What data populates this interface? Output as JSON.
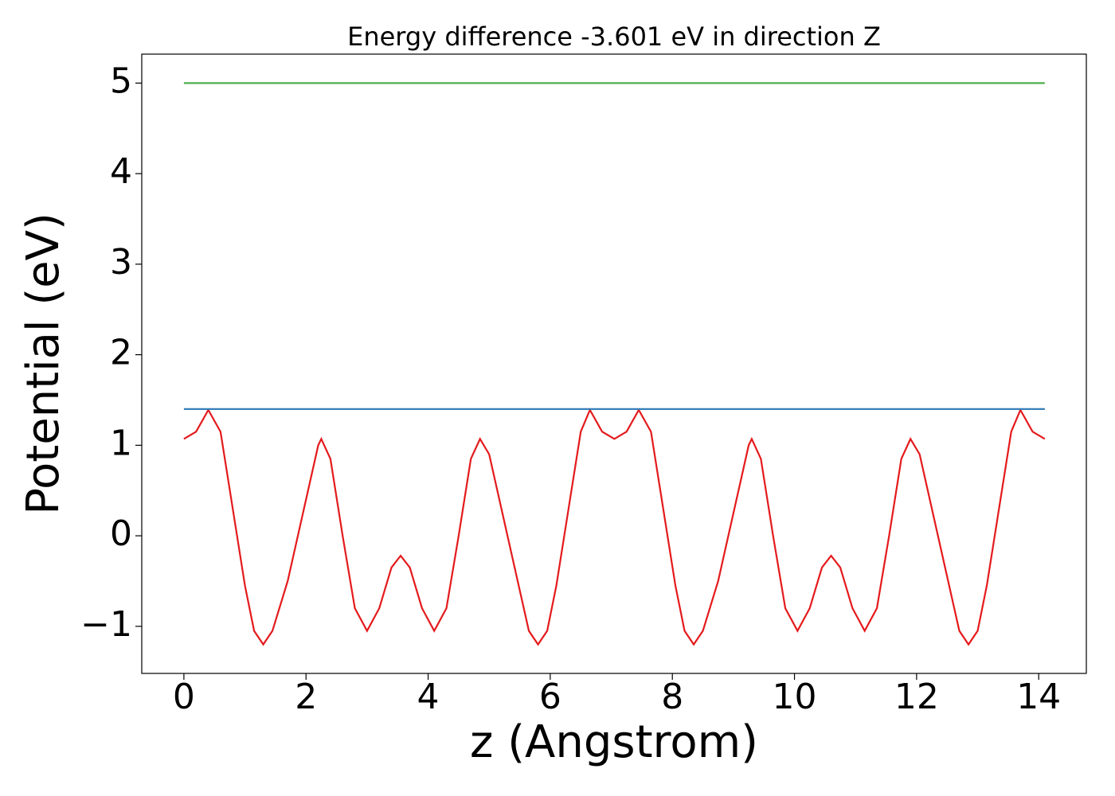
{
  "chart_data": {
    "type": "line",
    "title": "Energy difference -3.601 eV in direction Z",
    "x_label": "z (Angstrom)",
    "y_label": "Potential (eV)",
    "xlim": [
      -0.69,
      14.78
    ],
    "ylim": [
      -1.52,
      5.32
    ],
    "xticks": [
      0,
      2,
      4,
      6,
      8,
      10,
      12,
      14
    ],
    "yticks": [
      {
        "value": -1,
        "label": "−1"
      },
      0,
      1,
      2,
      3,
      4,
      5
    ],
    "series": [
      {
        "color": "#e41a1c",
        "x": [
          0,
          0.2,
          0.4,
          0.6,
          0.8,
          1.0,
          1.15,
          1.3,
          1.45,
          1.7,
          2.0,
          2.2,
          2.25,
          2.4,
          2.6,
          2.8,
          3.0,
          3.2,
          3.4,
          3.55,
          3.7,
          3.9,
          4.1,
          4.3,
          4.5,
          4.7,
          4.85,
          5.0,
          5.2,
          5.5,
          5.65,
          5.8,
          5.95,
          6.1,
          6.3,
          6.5,
          6.65,
          6.85,
          7.05,
          7.25,
          7.45,
          7.65,
          7.85,
          8.05,
          8.2,
          8.35,
          8.5,
          8.75,
          9.05,
          9.25,
          9.3,
          9.45,
          9.65,
          9.85,
          10.05,
          10.25,
          10.45,
          10.6,
          10.75,
          10.95,
          11.15,
          11.35,
          11.55,
          11.75,
          11.9,
          12.05,
          12.25,
          12.55,
          12.7,
          12.85,
          13.0,
          13.15,
          13.35,
          13.55,
          13.7,
          13.9,
          14.1
        ],
        "values": [
          1.07,
          1.15,
          1.39,
          1.15,
          0.3,
          -0.55,
          -1.05,
          -1.2,
          -1.05,
          -0.5,
          0.4,
          1.0,
          1.07,
          0.85,
          0.0,
          -0.8,
          -1.05,
          -0.8,
          -0.35,
          -0.22,
          -0.35,
          -0.8,
          -1.05,
          -0.8,
          0.0,
          0.85,
          1.07,
          0.9,
          0.3,
          -0.6,
          -1.05,
          -1.2,
          -1.05,
          -0.55,
          0.3,
          1.15,
          1.39,
          1.15,
          1.07,
          1.15,
          1.39,
          1.15,
          0.3,
          -0.55,
          -1.05,
          -1.2,
          -1.05,
          -0.5,
          0.4,
          1.0,
          1.07,
          0.85,
          0.0,
          -0.8,
          -1.05,
          -0.8,
          -0.35,
          -0.22,
          -0.35,
          -0.8,
          -1.05,
          -0.8,
          0.0,
          0.85,
          1.07,
          0.9,
          0.3,
          -0.6,
          -1.05,
          -1.2,
          -1.05,
          -0.55,
          0.3,
          1.15,
          1.39,
          1.15,
          1.07
        ]
      },
      {
        "color": "#377eb8",
        "x": [
          0,
          14.1
        ],
        "values": [
          1.4,
          1.4
        ]
      },
      {
        "color": "#4daf4a",
        "x": [
          0,
          14.1
        ],
        "values": [
          5.0,
          5.0
        ]
      }
    ]
  }
}
